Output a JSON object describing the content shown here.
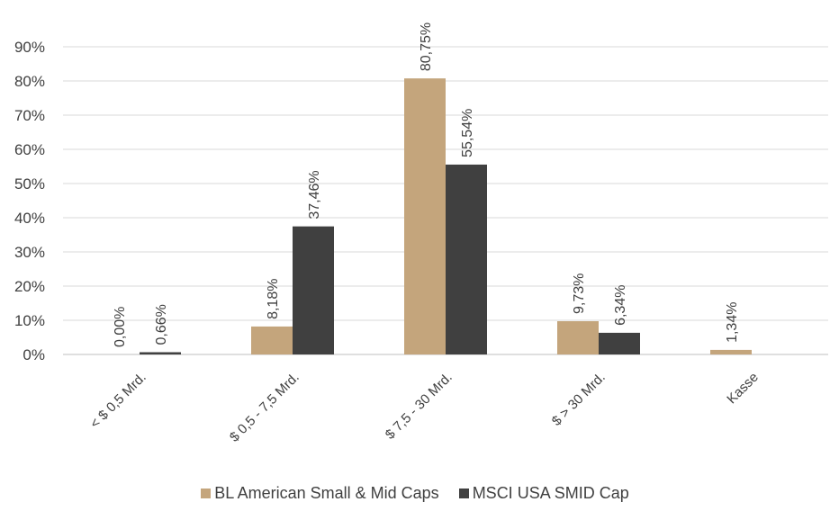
{
  "chart_data": {
    "type": "bar",
    "categories": [
      "< $ 0,5 Mrd.",
      "$ 0,5 - 7,5 Mrd.",
      "$ 7,5 - 30 Mrd.",
      "$ > 30 Mrd.",
      "Kasse"
    ],
    "series": [
      {
        "name": "BL American Small & Mid Caps",
        "color": "#c4a57c",
        "values": [
          0.0,
          8.18,
          80.75,
          9.73,
          1.34
        ],
        "labels": [
          "0,00%",
          "8,18%",
          "80,75%",
          "9,73%",
          "1,34%"
        ]
      },
      {
        "name": "MSCI USA SMID Cap",
        "color": "#404040",
        "values": [
          0.66,
          37.46,
          55.54,
          6.34,
          null
        ],
        "labels": [
          "0,66%",
          "37,46%",
          "55,54%",
          "6,34%",
          null
        ]
      }
    ],
    "ylim": [
      0,
      90
    ],
    "yticks": [
      "0%",
      "10%",
      "20%",
      "30%",
      "40%",
      "50%",
      "60%",
      "70%",
      "80%",
      "90%"
    ],
    "grid": true,
    "legend": "bottom"
  },
  "legend": {
    "series1": "BL American Small & Mid Caps",
    "series2": "MSCI USA SMID Cap"
  }
}
